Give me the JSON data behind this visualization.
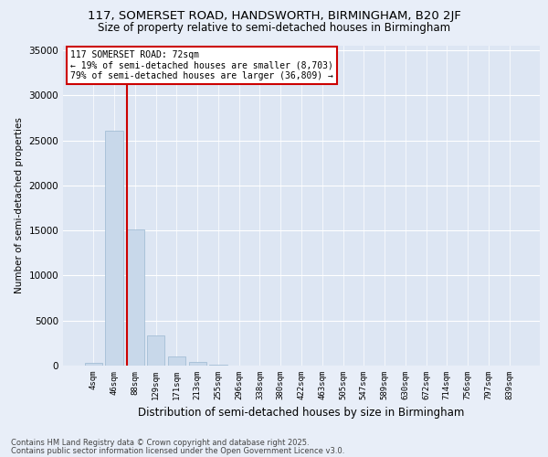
{
  "title_line1": "117, SOMERSET ROAD, HANDSWORTH, BIRMINGHAM, B20 2JF",
  "title_line2": "Size of property relative to semi-detached houses in Birmingham",
  "xlabel": "Distribution of semi-detached houses by size in Birmingham",
  "ylabel": "Number of semi-detached properties",
  "categories": [
    "4sqm",
    "46sqm",
    "88sqm",
    "129sqm",
    "171sqm",
    "213sqm",
    "255sqm",
    "296sqm",
    "338sqm",
    "380sqm",
    "422sqm",
    "463sqm",
    "505sqm",
    "547sqm",
    "589sqm",
    "630sqm",
    "672sqm",
    "714sqm",
    "756sqm",
    "797sqm",
    "839sqm"
  ],
  "values": [
    350,
    26100,
    15100,
    3300,
    1050,
    450,
    150,
    50,
    10,
    5,
    2,
    1,
    0,
    0,
    0,
    0,
    0,
    0,
    0,
    0,
    0
  ],
  "bar_color": "#c8d8ea",
  "bar_edge_color": "#9ab8d0",
  "annotation_text": "117 SOMERSET ROAD: 72sqm\n← 19% of semi-detached houses are smaller (8,703)\n79% of semi-detached houses are larger (36,809) →",
  "vline_color": "#cc0000",
  "vline_x": 1.63,
  "ylim": [
    0,
    35500
  ],
  "yticks": [
    0,
    5000,
    10000,
    15000,
    20000,
    25000,
    30000,
    35000
  ],
  "bg_color": "#e8eef8",
  "plot_bg_color": "#dde6f3",
  "grid_color": "#ffffff",
  "footer_line1": "Contains HM Land Registry data © Crown copyright and database right 2025.",
  "footer_line2": "Contains public sector information licensed under the Open Government Licence v3.0.",
  "annotation_box_color": "#cc0000",
  "figsize": [
    6.0,
    5.0
  ],
  "dpi": 100
}
